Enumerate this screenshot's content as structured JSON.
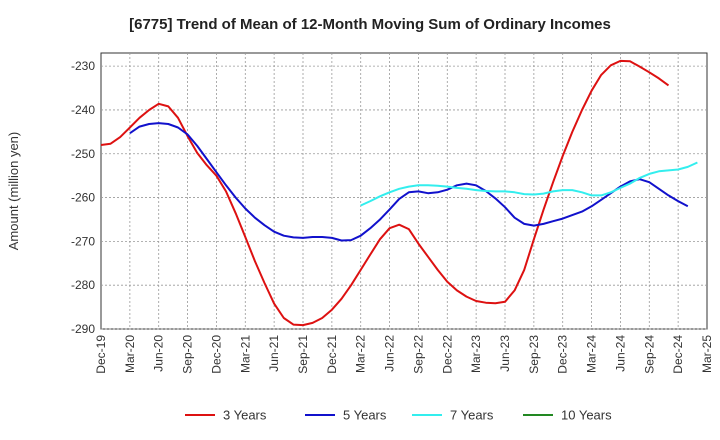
{
  "chart_data": {
    "type": "line",
    "title": "[6775]  Trend of Mean of 12-Month Moving Sum of Ordinary Incomes",
    "xlabel": "",
    "ylabel": "Amount (million yen)",
    "ylim": [
      -290,
      -227
    ],
    "yticks": [
      -230,
      -240,
      -250,
      -260,
      -270,
      -280,
      -290
    ],
    "ytick_labels": [
      "-230",
      "-240",
      "-250",
      "-260",
      "-270",
      "-280",
      "-290"
    ],
    "x_labels": [
      "Dec-19",
      "Mar-20",
      "Jun-20",
      "Sep-20",
      "Dec-20",
      "Mar-21",
      "Jun-21",
      "Sep-21",
      "Dec-21",
      "Mar-22",
      "Jun-22",
      "Sep-22",
      "Dec-22",
      "Mar-23",
      "Jun-23",
      "Sep-23",
      "Dec-23",
      "Mar-24",
      "Jun-24",
      "Sep-24",
      "Dec-24",
      "Mar-25"
    ],
    "x_start": "2019-12",
    "grid": true,
    "legend_position": "bottom",
    "series": [
      {
        "name": "3 Years",
        "color": "#dd1111",
        "start_index": 0,
        "values": [
          -248.0,
          -247.7,
          -246.2,
          -244.0,
          -241.8,
          -240.0,
          -238.6,
          -239.2,
          -241.8,
          -246.0,
          -249.8,
          -252.6,
          -255.0,
          -258.6,
          -263.6,
          -269.0,
          -274.5,
          -279.5,
          -284.2,
          -287.5,
          -289.0,
          -289.1,
          -288.6,
          -287.5,
          -285.6,
          -283.1,
          -280.0,
          -276.5,
          -273.0,
          -269.5,
          -267.0,
          -266.2,
          -267.2,
          -270.5,
          -273.5,
          -276.5,
          -279.2,
          -281.2,
          -282.6,
          -283.6,
          -284.0,
          -284.1,
          -283.8,
          -281.2,
          -276.5,
          -269.5,
          -262.8,
          -256.5,
          -250.5,
          -245.0,
          -240.0,
          -235.6,
          -232.0,
          -229.8,
          -228.8,
          -228.9,
          -230.1,
          -231.4,
          -232.8,
          -234.4
        ]
      },
      {
        "name": "5 Years",
        "color": "#1111cc",
        "start_index": 3,
        "values": [
          -245.3,
          -243.8,
          -243.2,
          -243.0,
          -243.2,
          -244.0,
          -245.6,
          -248.2,
          -251.2,
          -254.2,
          -257.2,
          -260.0,
          -262.5,
          -264.6,
          -266.3,
          -267.8,
          -268.7,
          -269.1,
          -269.2,
          -269.0,
          -269.0,
          -269.2,
          -269.8,
          -269.7,
          -268.7,
          -267.0,
          -265.0,
          -262.7,
          -260.3,
          -258.8,
          -258.6,
          -259.0,
          -258.8,
          -258.2,
          -257.2,
          -256.8,
          -257.2,
          -258.5,
          -260.2,
          -262.2,
          -264.6,
          -266.0,
          -266.4,
          -266.0,
          -265.4,
          -264.8,
          -264.0,
          -263.2,
          -262.0,
          -260.5,
          -259.0,
          -257.5,
          -256.3,
          -255.8,
          -256.5,
          -258.0,
          -259.5,
          -260.8,
          -262.0
        ]
      },
      {
        "name": "7 Years",
        "color": "#33eeee",
        "start_index": 27,
        "values": [
          -261.8,
          -260.8,
          -259.7,
          -258.8,
          -258.0,
          -257.5,
          -257.2,
          -257.2,
          -257.3,
          -257.5,
          -257.8,
          -258.0,
          -258.3,
          -258.5,
          -258.6,
          -258.6,
          -258.8,
          -259.2,
          -259.3,
          -259.1,
          -258.6,
          -258.3,
          -258.3,
          -258.8,
          -259.5,
          -259.5,
          -258.8,
          -257.8,
          -256.8,
          -255.5,
          -254.6,
          -254.0,
          -253.8,
          -253.6,
          -253.0,
          -252.0
        ]
      },
      {
        "name": "10 Years",
        "color": "#228822",
        "start_index": 0,
        "values": []
      }
    ]
  }
}
